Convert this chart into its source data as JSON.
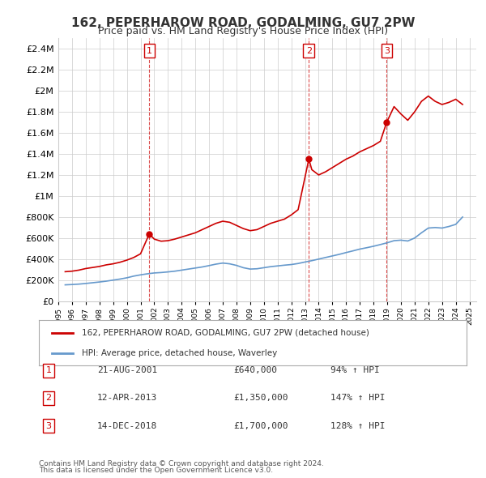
{
  "title": "162, PEPERHAROW ROAD, GODALMING, GU7 2PW",
  "subtitle": "Price paid vs. HM Land Registry's House Price Index (HPI)",
  "legend_label_red": "162, PEPERHAROW ROAD, GODALMING, GU7 2PW (detached house)",
  "legend_label_blue": "HPI: Average price, detached house, Waverley",
  "footer_line1": "Contains HM Land Registry data © Crown copyright and database right 2024.",
  "footer_line2": "This data is licensed under the Open Government Licence v3.0.",
  "sales": [
    {
      "num": 1,
      "date": "21-AUG-2001",
      "price": "£640,000",
      "pct": "94% ↑ HPI",
      "year": 2001.64
    },
    {
      "num": 2,
      "date": "12-APR-2013",
      "price": "£1,350,000",
      "pct": "147% ↑ HPI",
      "year": 2013.28
    },
    {
      "num": 3,
      "date": "14-DEC-2018",
      "price": "£1,700,000",
      "pct": "128% ↑ HPI",
      "year": 2018.96
    }
  ],
  "sale_values": [
    640000,
    1350000,
    1700000
  ],
  "red_color": "#cc0000",
  "blue_color": "#6699cc",
  "dashed_color": "#cc0000",
  "grid_color": "#cccccc",
  "background_color": "#ffffff",
  "ylim": [
    0,
    2500000
  ],
  "yticks": [
    0,
    200000,
    400000,
    600000,
    800000,
    1000000,
    1200000,
    1400000,
    1600000,
    1800000,
    2000000,
    2200000,
    2400000
  ],
  "xlim_start": 1995.0,
  "xlim_end": 2025.5,
  "xticks": [
    1995,
    1996,
    1997,
    1998,
    1999,
    2000,
    2001,
    2002,
    2003,
    2004,
    2005,
    2006,
    2007,
    2008,
    2009,
    2010,
    2011,
    2012,
    2013,
    2014,
    2015,
    2016,
    2017,
    2018,
    2019,
    2020,
    2021,
    2022,
    2023,
    2024,
    2025
  ],
  "red_data_x": [
    1995.5,
    1996.0,
    1996.5,
    1997.0,
    1997.5,
    1998.0,
    1998.5,
    1999.0,
    1999.5,
    2000.0,
    2000.5,
    2001.0,
    2001.64,
    2002.0,
    2002.5,
    2003.0,
    2003.5,
    2004.0,
    2004.5,
    2005.0,
    2005.5,
    2006.0,
    2006.5,
    2007.0,
    2007.5,
    2008.0,
    2008.5,
    2009.0,
    2009.5,
    2010.0,
    2010.5,
    2011.0,
    2011.5,
    2012.0,
    2012.5,
    2013.28,
    2013.5,
    2014.0,
    2014.5,
    2015.0,
    2015.5,
    2016.0,
    2016.5,
    2017.0,
    2017.5,
    2018.0,
    2018.5,
    2018.96,
    2019.5,
    2020.0,
    2020.5,
    2021.0,
    2021.5,
    2022.0,
    2022.5,
    2023.0,
    2023.5,
    2024.0,
    2024.5
  ],
  "red_data_y": [
    280000,
    285000,
    295000,
    310000,
    320000,
    330000,
    345000,
    355000,
    370000,
    390000,
    415000,
    450000,
    640000,
    590000,
    570000,
    575000,
    590000,
    610000,
    630000,
    650000,
    680000,
    710000,
    740000,
    760000,
    750000,
    720000,
    690000,
    670000,
    680000,
    710000,
    740000,
    760000,
    780000,
    820000,
    870000,
    1350000,
    1250000,
    1200000,
    1230000,
    1270000,
    1310000,
    1350000,
    1380000,
    1420000,
    1450000,
    1480000,
    1520000,
    1700000,
    1850000,
    1780000,
    1720000,
    1800000,
    1900000,
    1950000,
    1900000,
    1870000,
    1890000,
    1920000,
    1870000
  ],
  "blue_data_x": [
    1995.5,
    1996.0,
    1996.5,
    1997.0,
    1997.5,
    1998.0,
    1998.5,
    1999.0,
    1999.5,
    2000.0,
    2000.5,
    2001.0,
    2001.5,
    2002.0,
    2002.5,
    2003.0,
    2003.5,
    2004.0,
    2004.5,
    2005.0,
    2005.5,
    2006.0,
    2006.5,
    2007.0,
    2007.5,
    2008.0,
    2008.5,
    2009.0,
    2009.5,
    2010.0,
    2010.5,
    2011.0,
    2011.5,
    2012.0,
    2012.5,
    2013.0,
    2013.5,
    2014.0,
    2014.5,
    2015.0,
    2015.5,
    2016.0,
    2016.5,
    2017.0,
    2017.5,
    2018.0,
    2018.5,
    2019.0,
    2019.5,
    2020.0,
    2020.5,
    2021.0,
    2021.5,
    2022.0,
    2022.5,
    2023.0,
    2023.5,
    2024.0,
    2024.5
  ],
  "blue_data_y": [
    155000,
    158000,
    162000,
    168000,
    175000,
    182000,
    190000,
    200000,
    210000,
    222000,
    238000,
    250000,
    260000,
    268000,
    272000,
    278000,
    285000,
    295000,
    305000,
    315000,
    325000,
    338000,
    352000,
    362000,
    355000,
    340000,
    318000,
    305000,
    308000,
    318000,
    328000,
    335000,
    342000,
    348000,
    358000,
    372000,
    385000,
    400000,
    415000,
    430000,
    445000,
    462000,
    478000,
    495000,
    508000,
    522000,
    538000,
    555000,
    575000,
    580000,
    572000,
    600000,
    650000,
    695000,
    700000,
    695000,
    710000,
    730000,
    800000
  ]
}
